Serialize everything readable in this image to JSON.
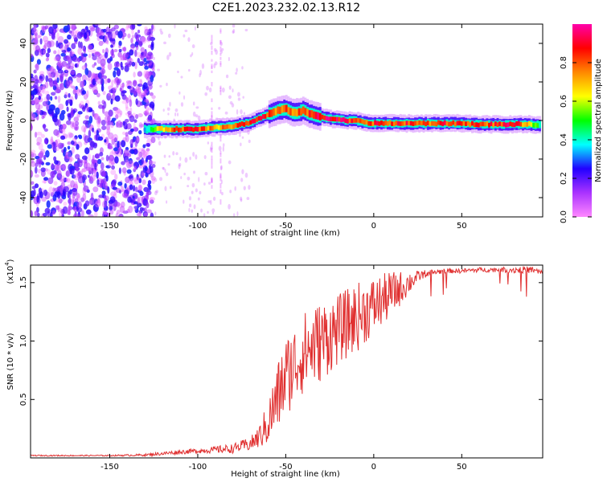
{
  "title": "C2E1.2023.232.02.13.R12",
  "chart_data": [
    {
      "type": "heatmap",
      "xlabel": "Height of straight line (km)",
      "ylabel": "Frequency (Hz)",
      "xlim": [
        -195,
        96
      ],
      "ylim": [
        -50,
        50
      ],
      "xticks": [
        -150,
        -100,
        -50,
        0,
        50
      ],
      "yticks": [
        -40,
        -20,
        0,
        20,
        40
      ],
      "colorbar": {
        "label": "Normalized spectral amplitude",
        "range": [
          0.0,
          1.0
        ],
        "ticks": [
          "0.0",
          "0.2",
          "0.4",
          "0.6",
          "0.8"
        ],
        "colors": [
          "#ff88ff",
          "#aa33ff",
          "#2200ff",
          "#00ffff",
          "#00ff00",
          "#ffff00",
          "#ff8800",
          "#ff0000",
          "#ff00aa"
        ]
      },
      "ridge": {
        "x": [
          -130,
          -120,
          -110,
          -100,
          -90,
          -80,
          -70,
          -60,
          -55,
          -50,
          -45,
          -40,
          -35,
          -30,
          -25,
          -20,
          -15,
          -10,
          -5,
          0,
          10,
          20,
          30,
          40,
          50,
          60,
          70,
          80,
          90,
          95
        ],
        "y": [
          -4.5,
          -4.5,
          -4.5,
          -4.5,
          -3.5,
          -3,
          -1,
          3,
          5,
          6,
          4,
          5,
          3,
          2,
          1,
          0.5,
          0,
          0,
          -1,
          -1.5,
          -1.5,
          -1.5,
          -1.5,
          -1.5,
          -1.5,
          -2,
          -2,
          -2,
          -2,
          -2.5
        ],
        "amp": [
          0.35,
          0.7,
          0.85,
          0.85,
          0.7,
          0.8,
          0.85,
          0.85,
          0.8,
          0.8,
          0.75,
          0.8,
          0.85,
          0.9,
          0.9,
          0.9,
          0.9,
          0.85,
          0.85,
          0.85,
          0.85,
          0.85,
          0.8,
          0.85,
          0.85,
          0.85,
          0.85,
          0.9,
          0.6,
          0.45
        ]
      }
    },
    {
      "type": "line",
      "xlabel": "Height of straight line (km)",
      "ylabel": "SNR (10 * v/v)",
      "multiplier": "(x10",
      "multiplier_exp": "4",
      "xlim": [
        -195,
        96
      ],
      "ylim": [
        0,
        1.65
      ],
      "xticks": [
        -150,
        -100,
        -50,
        0,
        50
      ],
      "yticks": [
        0.5,
        1.0,
        1.5
      ],
      "color": "#e03030",
      "envelope": {
        "x": [
          -195,
          -150,
          -130,
          -110,
          -100,
          -90,
          -80,
          -75,
          -70,
          -65,
          -60,
          -55,
          -50,
          -45,
          -40,
          -35,
          -30,
          -20,
          -10,
          0,
          10,
          20,
          25,
          30,
          40,
          50,
          60,
          70,
          80,
          90,
          96
        ],
        "y": [
          0.02,
          0.02,
          0.025,
          0.05,
          0.06,
          0.07,
          0.08,
          0.1,
          0.12,
          0.18,
          0.3,
          0.5,
          0.7,
          0.8,
          0.9,
          0.95,
          1.0,
          1.1,
          1.2,
          1.3,
          1.4,
          1.5,
          1.55,
          1.58,
          1.6,
          1.6,
          1.61,
          1.61,
          1.61,
          1.61,
          1.58
        ],
        "spread": [
          0.005,
          0.005,
          0.01,
          0.02,
          0.02,
          0.03,
          0.04,
          0.05,
          0.06,
          0.1,
          0.2,
          0.3,
          0.35,
          0.35,
          0.35,
          0.35,
          0.35,
          0.3,
          0.3,
          0.25,
          0.2,
          0.1,
          0.05,
          0.03,
          0.02,
          0.02,
          0.02,
          0.02,
          0.03,
          0.03,
          0.03
        ]
      }
    }
  ]
}
